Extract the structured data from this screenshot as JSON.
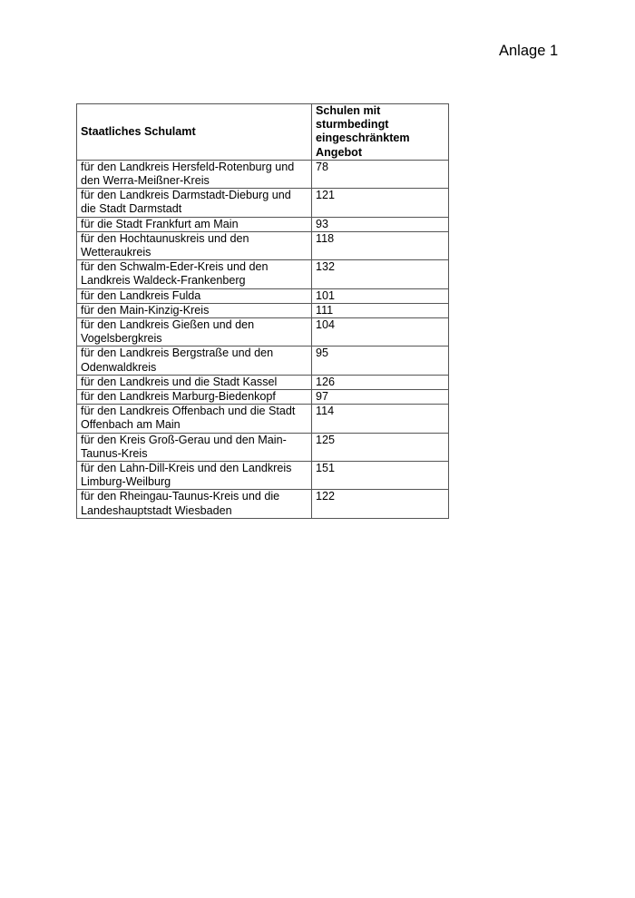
{
  "annex_label": "Anlage 1",
  "table": {
    "headers": [
      [
        "Staatliches Schulamt"
      ],
      [
        "Schulen mit",
        "sturmbedingt",
        "eingeschränktem",
        "Angebot"
      ]
    ],
    "rows": [
      {
        "lines": [
          "für den Landkreis Hersfeld-Rotenburg und",
          "den Werra-Meißner-Kreis"
        ],
        "value": "78"
      },
      {
        "lines": [
          "für den Landkreis Darmstadt-Dieburg und",
          "die Stadt Darmstadt"
        ],
        "value": "121"
      },
      {
        "lines": [
          "für die Stadt Frankfurt am Main"
        ],
        "value": "93"
      },
      {
        "lines": [
          "für den Hochtaunuskreis und den",
          "Wetteraukreis"
        ],
        "value": "118"
      },
      {
        "lines": [
          "für den Schwalm-Eder-Kreis und den",
          "Landkreis Waldeck-Frankenberg"
        ],
        "value": "132"
      },
      {
        "lines": [
          "für den Landkreis Fulda"
        ],
        "value": "101"
      },
      {
        "lines": [
          "für den Main-Kinzig-Kreis"
        ],
        "value": "111"
      },
      {
        "lines": [
          "für den Landkreis Gießen und den",
          "Vogelsbergkreis"
        ],
        "value": "104"
      },
      {
        "lines": [
          "für den Landkreis Bergstraße und den",
          "Odenwaldkreis"
        ],
        "value": "95"
      },
      {
        "lines": [
          "für den Landkreis und die Stadt Kassel"
        ],
        "value": "126"
      },
      {
        "lines": [
          "für den Landkreis Marburg-Biedenkopf"
        ],
        "value": "97"
      },
      {
        "lines": [
          "für den Landkreis Offenbach und die Stadt",
          "Offenbach am Main"
        ],
        "value": "114"
      },
      {
        "lines": [
          "für den Kreis Groß-Gerau und den Main-",
          "Taunus-Kreis"
        ],
        "value": "125"
      },
      {
        "lines": [
          "für den Lahn-Dill-Kreis und den Landkreis",
          "Limburg-Weilburg"
        ],
        "value": "151"
      },
      {
        "lines": [
          "für den Rheingau-Taunus-Kreis und die",
          "Landeshauptstadt Wiesbaden"
        ],
        "value": "122"
      }
    ]
  }
}
